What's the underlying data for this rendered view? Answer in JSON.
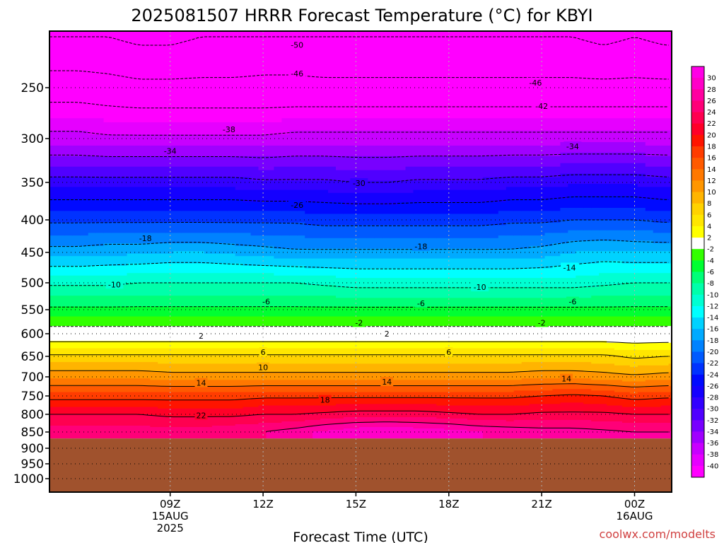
{
  "chart_data": {
    "type": "heatmap",
    "title": "2025081507 HRRR Forecast Temperature (°C) for KBYI",
    "xlabel": "Forecast Time (UTC)",
    "ylabel": "",
    "credit": "coolwx.com/modelts",
    "colors": {
      "ground": "#a0522d",
      "axis": "#000000",
      "contour": "#000000",
      "credit": "#d04040",
      "vgrid": "#b0b0b0"
    },
    "x_hours": [
      6,
      7,
      8,
      9,
      10,
      11,
      12,
      13,
      14,
      15,
      16,
      17,
      18,
      19,
      20,
      21,
      22,
      23,
      24,
      25
    ],
    "x_ticks": [
      {
        "hour": 9,
        "lines": [
          "09Z",
          "15AUG",
          "2025"
        ]
      },
      {
        "hour": 12,
        "lines": [
          "12Z"
        ]
      },
      {
        "hour": 15,
        "lines": [
          "15Z"
        ]
      },
      {
        "hour": 18,
        "lines": [
          "18Z"
        ]
      },
      {
        "hour": 21,
        "lines": [
          "21Z"
        ]
      },
      {
        "hour": 24,
        "lines": [
          "00Z",
          "16AUG"
        ]
      }
    ],
    "y_ticks": [
      250,
      300,
      350,
      400,
      450,
      500,
      550,
      600,
      650,
      700,
      750,
      800,
      850,
      900,
      950,
      1000
    ],
    "y_range": [
      200,
      1050
    ],
    "ground_pressure": 870,
    "levels": [
      200,
      250,
      300,
      350,
      400,
      450,
      500,
      550,
      600,
      650,
      700,
      750,
      800,
      850
    ],
    "temperature": [
      [
        -50.0,
        -50.0,
        -51.0,
        -51.0,
        -50.0,
        -50.0,
        -49.0,
        -49.0,
        -50.0,
        -50.0,
        -50.0,
        -50.0,
        -50.0,
        -50.0,
        -50.0,
        -50.0,
        -50.0,
        -51.0,
        -50.0,
        -51.0
      ],
      [
        -44.0,
        -44.5,
        -45.0,
        -45.0,
        -45.0,
        -45.0,
        -45.0,
        -45.0,
        -45.0,
        -45.0,
        -45.0,
        -45.0,
        -45.0,
        -45.0,
        -45.0,
        -45.0,
        -45.0,
        -45.0,
        -45.0,
        -45.0
      ],
      [
        -37.0,
        -37.5,
        -37.5,
        -37.5,
        -37.5,
        -37.5,
        -37.5,
        -37.0,
        -37.0,
        -37.0,
        -37.0,
        -37.0,
        -37.0,
        -37.0,
        -37.0,
        -37.0,
        -37.0,
        -37.0,
        -37.0,
        -37.0
      ],
      [
        -29.0,
        -29.0,
        -29.0,
        -29.0,
        -29.0,
        -29.0,
        -29.5,
        -29.5,
        -29.5,
        -30.0,
        -30.0,
        -29.5,
        -29.5,
        -29.5,
        -29.0,
        -29.0,
        -28.5,
        -28.5,
        -28.5,
        -29.0
      ],
      [
        -22.5,
        -22.5,
        -22.5,
        -22.5,
        -22.5,
        -22.5,
        -22.5,
        -22.5,
        -23.0,
        -23.0,
        -23.0,
        -23.0,
        -23.0,
        -23.0,
        -22.5,
        -22.5,
        -22.0,
        -22.0,
        -22.0,
        -22.5
      ],
      [
        -17.0,
        -16.5,
        -16.5,
        -16.0,
        -16.0,
        -16.5,
        -17.0,
        -17.5,
        -17.5,
        -17.5,
        -17.5,
        -17.5,
        -17.5,
        -17.5,
        -17.5,
        -17.0,
        -16.0,
        -15.5,
        -16.0,
        -16.0
      ],
      [
        -10.5,
        -10.5,
        -10.0,
        -10.0,
        -10.0,
        -10.0,
        -10.0,
        -10.0,
        -10.5,
        -11.0,
        -11.0,
        -11.0,
        -11.0,
        -11.0,
        -11.0,
        -11.0,
        -11.0,
        -10.5,
        -10.0,
        -10.0
      ],
      [
        -5.5,
        -5.5,
        -5.5,
        -5.5,
        -5.5,
        -5.5,
        -5.5,
        -5.5,
        -5.5,
        -5.5,
        -5.5,
        -5.5,
        -5.5,
        -5.5,
        -5.5,
        -5.5,
        -5.5,
        -5.5,
        -5.5,
        -5.5
      ],
      [
        -0.5,
        -0.5,
        -0.5,
        -0.5,
        -0.5,
        -0.5,
        -0.5,
        -0.5,
        -0.5,
        -0.5,
        -0.5,
        -0.5,
        -0.5,
        -0.5,
        -0.5,
        -0.5,
        -0.5,
        -0.5,
        -0.5,
        -0.5
      ],
      [
        6.5,
        6.5,
        6.5,
        6.5,
        6.5,
        6.5,
        6.5,
        6.5,
        6.5,
        6.5,
        6.5,
        6.5,
        6.5,
        6.5,
        6.5,
        6.5,
        6.5,
        6.5,
        5.5,
        6.0
      ],
      [
        11.5,
        11.5,
        11.5,
        11.0,
        11.0,
        11.0,
        11.0,
        11.0,
        11.0,
        11.0,
        11.0,
        11.0,
        11.0,
        11.0,
        11.0,
        11.5,
        11.5,
        11.0,
        10.5,
        11.0
      ],
      [
        17.0,
        17.0,
        17.0,
        17.0,
        17.0,
        17.0,
        17.5,
        17.5,
        17.5,
        17.5,
        17.5,
        17.5,
        17.5,
        17.5,
        17.5,
        18.0,
        18.5,
        18.0,
        17.0,
        17.5
      ],
      [
        22.0,
        22.0,
        22.0,
        21.5,
        21.5,
        21.5,
        22.0,
        22.0,
        22.5,
        23.0,
        23.0,
        23.0,
        22.5,
        22.0,
        22.0,
        22.5,
        22.5,
        22.5,
        22.0,
        22.0
      ],
      [
        25.0,
        25.0,
        25.0,
        25.0,
        25.0,
        25.5,
        26.0,
        27.0,
        28.5,
        29.5,
        30.0,
        29.5,
        29.0,
        28.0,
        27.5,
        27.0,
        27.0,
        26.5,
        26.0,
        26.0
      ]
    ],
    "contour_levels": [
      -50,
      -46,
      -42,
      -38,
      -34,
      -30,
      -26,
      -22,
      -18,
      -14,
      -10,
      -6,
      -2,
      2,
      6,
      10,
      14,
      18,
      22,
      26
    ],
    "contour_labels": [
      {
        "text": "-50",
        "hour": 13.1,
        "p": 208
      },
      {
        "text": "-46",
        "hour": 13.1,
        "p": 236
      },
      {
        "text": "-46",
        "hour": 20.8,
        "p": 245
      },
      {
        "text": "-42",
        "hour": 21.0,
        "p": 268
      },
      {
        "text": "-38",
        "hour": 10.9,
        "p": 291
      },
      {
        "text": "-34",
        "hour": 9.0,
        "p": 314
      },
      {
        "text": "-34",
        "hour": 22.0,
        "p": 309
      },
      {
        "text": "-30",
        "hour": 15.1,
        "p": 351
      },
      {
        "text": "-26",
        "hour": 13.1,
        "p": 380
      },
      {
        "text": "-18",
        "hour": 8.2,
        "p": 428
      },
      {
        "text": "-18",
        "hour": 17.1,
        "p": 441
      },
      {
        "text": "-14",
        "hour": 21.9,
        "p": 475
      },
      {
        "text": "-10",
        "hour": 7.2,
        "p": 503
      },
      {
        "text": "-10",
        "hour": 19.0,
        "p": 508
      },
      {
        "text": "-6",
        "hour": 12.1,
        "p": 535
      },
      {
        "text": "-6",
        "hour": 17.1,
        "p": 538
      },
      {
        "text": "-6",
        "hour": 22.0,
        "p": 535
      },
      {
        "text": "-2",
        "hour": 15.1,
        "p": 577
      },
      {
        "text": "-2",
        "hour": 21.0,
        "p": 577
      },
      {
        "text": "2",
        "hour": 10.0,
        "p": 605
      },
      {
        "text": "2",
        "hour": 16.0,
        "p": 600
      },
      {
        "text": "6",
        "hour": 12.0,
        "p": 641
      },
      {
        "text": "6",
        "hour": 18.0,
        "p": 641
      },
      {
        "text": "10",
        "hour": 12.0,
        "p": 677
      },
      {
        "text": "14",
        "hour": 10.0,
        "p": 716
      },
      {
        "text": "14",
        "hour": 16.0,
        "p": 713
      },
      {
        "text": "14",
        "hour": 21.8,
        "p": 705
      },
      {
        "text": "18",
        "hour": 14.0,
        "p": 761
      },
      {
        "text": "22",
        "hour": 10.0,
        "p": 803
      }
    ],
    "colorbar": {
      "labels": [
        "30",
        "28",
        "26",
        "24",
        "22",
        "20",
        "18",
        "16",
        "14",
        "12",
        "10",
        "8",
        "6",
        "4",
        "2",
        "-2",
        "-4",
        "-6",
        "-8",
        "-10",
        "-12",
        "-14",
        "-16",
        "-18",
        "-20",
        "-22",
        "-24",
        "-26",
        "-28",
        "-30",
        "-32",
        "-34",
        "-36",
        "-38",
        "-40"
      ],
      "bins": [
        {
          "min": 30,
          "max": 99,
          "color": "#ff00e6"
        },
        {
          "min": 28,
          "max": 30,
          "color": "#ff00c8"
        },
        {
          "min": 26,
          "max": 28,
          "color": "#ff00a0"
        },
        {
          "min": 24,
          "max": 26,
          "color": "#ff0078"
        },
        {
          "min": 22,
          "max": 24,
          "color": "#ff0050"
        },
        {
          "min": 20,
          "max": 22,
          "color": "#ff0028"
        },
        {
          "min": 18,
          "max": 20,
          "color": "#ff1400"
        },
        {
          "min": 16,
          "max": 18,
          "color": "#ff3c00"
        },
        {
          "min": 14,
          "max": 16,
          "color": "#ff5a00"
        },
        {
          "min": 12,
          "max": 14,
          "color": "#ff7800"
        },
        {
          "min": 10,
          "max": 12,
          "color": "#ff9600"
        },
        {
          "min": 8,
          "max": 10,
          "color": "#ffb400"
        },
        {
          "min": 6,
          "max": 8,
          "color": "#ffd200"
        },
        {
          "min": 4,
          "max": 6,
          "color": "#ffe600"
        },
        {
          "min": 2,
          "max": 4,
          "color": "#ffff00"
        },
        {
          "min": -2,
          "max": 2,
          "color": "#ffffff"
        },
        {
          "min": -4,
          "max": -2,
          "color": "#32ff00"
        },
        {
          "min": -6,
          "max": -4,
          "color": "#00ff32"
        },
        {
          "min": -8,
          "max": -6,
          "color": "#00ff78"
        },
        {
          "min": -10,
          "max": -8,
          "color": "#00ffaa"
        },
        {
          "min": -12,
          "max": -10,
          "color": "#00ffd2"
        },
        {
          "min": -14,
          "max": -12,
          "color": "#00ffff"
        },
        {
          "min": -16,
          "max": -14,
          "color": "#00d2ff"
        },
        {
          "min": -18,
          "max": -16,
          "color": "#00aaff"
        },
        {
          "min": -20,
          "max": -18,
          "color": "#0082ff"
        },
        {
          "min": -22,
          "max": -20,
          "color": "#005aff"
        },
        {
          "min": -24,
          "max": -22,
          "color": "#0032ff"
        },
        {
          "min": -26,
          "max": -24,
          "color": "#000aff"
        },
        {
          "min": -28,
          "max": -26,
          "color": "#1400ff"
        },
        {
          "min": -30,
          "max": -28,
          "color": "#3200ff"
        },
        {
          "min": -32,
          "max": -30,
          "color": "#5000ff"
        },
        {
          "min": -34,
          "max": -32,
          "color": "#7800ff"
        },
        {
          "min": -36,
          "max": -34,
          "color": "#a000ff"
        },
        {
          "min": -38,
          "max": -36,
          "color": "#c800ff"
        },
        {
          "min": -40,
          "max": -38,
          "color": "#e600ff"
        },
        {
          "min": -99,
          "max": -40,
          "color": "#ff00ff"
        }
      ]
    }
  }
}
